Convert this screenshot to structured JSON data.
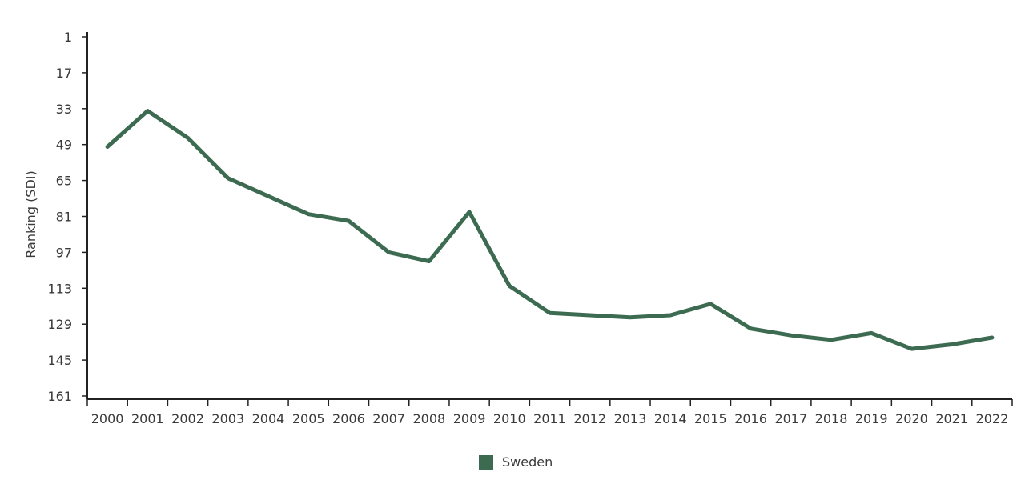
{
  "chart_data": {
    "type": "line",
    "ylabel": "Ranking (SDI)",
    "y_inverted": true,
    "ylim": [
      1,
      161
    ],
    "yticks": [
      1,
      17,
      33,
      49,
      65,
      81,
      97,
      113,
      129,
      145,
      161
    ],
    "categories": [
      "2000",
      "2001",
      "2002",
      "2003",
      "2004",
      "2005",
      "2006",
      "2007",
      "2008",
      "2009",
      "2010",
      "2011",
      "2012",
      "2013",
      "2014",
      "2015",
      "2016",
      "2017",
      "2018",
      "2019",
      "2020",
      "2021",
      "2022"
    ],
    "series": [
      {
        "name": "Sweden",
        "color": "#3d6b52",
        "values": [
          50,
          34,
          46,
          64,
          72,
          80,
          83,
          97,
          101,
          79,
          112,
          124,
          125,
          126,
          125,
          120,
          131,
          134,
          136,
          133,
          140,
          138,
          135
        ]
      }
    ],
    "grid": false,
    "legend_position": "bottom-center"
  }
}
